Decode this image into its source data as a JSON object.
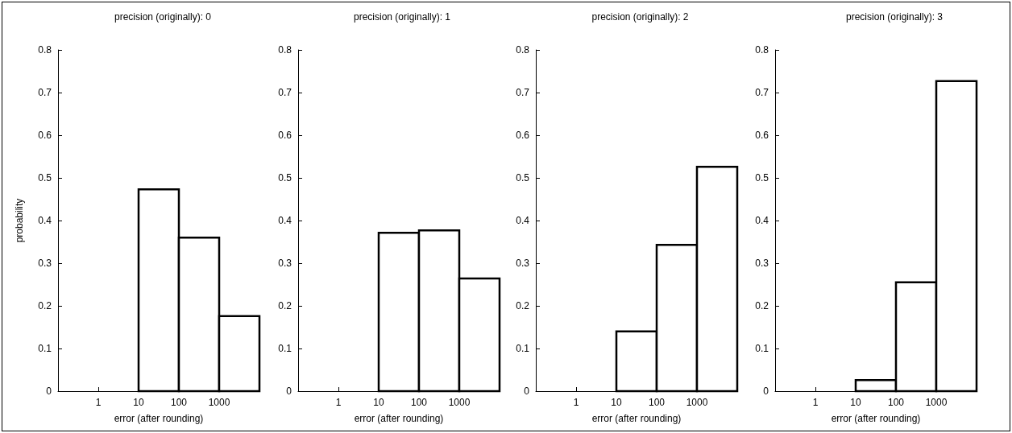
{
  "chart_data": [
    {
      "type": "histogram",
      "title": "precision (originally): 0",
      "xlabel": "error (after rounding)",
      "ylabel": "probability",
      "log": "x",
      "bins": [
        10,
        100,
        1000,
        10000
      ],
      "values": [
        0.473,
        0.36,
        0.176
      ],
      "color": "#ffffff",
      "xlim": [
        0.1,
        10000
      ],
      "xticks": [
        1,
        10,
        100,
        1000
      ],
      "ylim": [
        0,
        0.8
      ],
      "yticks": [
        0,
        0.1,
        0.2,
        0.3,
        0.4,
        0.5,
        0.6,
        0.7,
        0.8
      ],
      "grid": false
    },
    {
      "type": "histogram",
      "title": "precision (originally): 1",
      "xlabel": "error (after rounding)",
      "log": "x",
      "bins": [
        10,
        100,
        1000,
        10000
      ],
      "values": [
        0.371,
        0.377,
        0.264
      ],
      "color": "#ffffff",
      "xlim": [
        0.1,
        10000
      ],
      "xticks": [
        1,
        10,
        100,
        1000
      ],
      "ylim": [
        0,
        0.8
      ],
      "yticks": [
        0,
        0.1,
        0.2,
        0.3,
        0.4,
        0.5,
        0.6,
        0.7,
        0.8
      ],
      "grid": false
    },
    {
      "type": "histogram",
      "title": "precision (originally): 2",
      "xlabel": "error (after rounding)",
      "log": "x",
      "bins": [
        10,
        100,
        1000,
        10000
      ],
      "values": [
        0.14,
        0.343,
        0.526
      ],
      "color": "#ffffff",
      "xlim": [
        0.1,
        10000
      ],
      "xticks": [
        1,
        10,
        100,
        1000
      ],
      "ylim": [
        0,
        0.8
      ],
      "yticks": [
        0,
        0.1,
        0.2,
        0.3,
        0.4,
        0.5,
        0.6,
        0.7,
        0.8
      ],
      "grid": false
    },
    {
      "type": "histogram",
      "title": "precision (originally): 3",
      "xlabel": "error (after rounding)",
      "log": "x",
      "bins": [
        10,
        100,
        1000,
        10000
      ],
      "values": [
        0.026,
        0.255,
        0.727
      ],
      "color": "#ffffff",
      "xlim": [
        0.1,
        10000
      ],
      "xticks": [
        1,
        10,
        100,
        1000
      ],
      "ylim": [
        0,
        0.8
      ],
      "yticks": [
        0,
        0.1,
        0.2,
        0.3,
        0.4,
        0.5,
        0.6,
        0.7,
        0.8
      ],
      "grid": false
    }
  ]
}
